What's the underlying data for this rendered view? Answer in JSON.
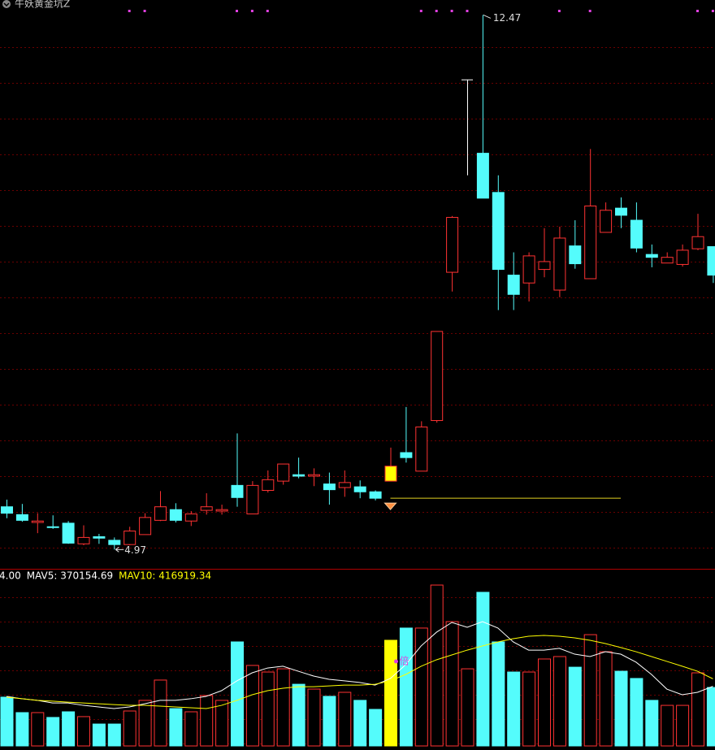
{
  "chart_data": {
    "type": "candlestick",
    "title": "牛妖黄金坑Z",
    "open": [
      5.57,
      5.46,
      5.35,
      5.29,
      5.34,
      5.05,
      5.15,
      5.1,
      5.04,
      5.18,
      5.38,
      5.53,
      5.37,
      5.52,
      5.51,
      5.87,
      5.47,
      5.8,
      5.93,
      6.02,
      6.0,
      5.89,
      5.84,
      5.85,
      5.78,
      5.93,
      6.33,
      6.07,
      6.78,
      8.86,
      10.22,
      10.53,
      9.98,
      8.82,
      8.71,
      8.9,
      8.61,
      9.23,
      8.77,
      9.42,
      9.76,
      9.59,
      9.11,
      8.99,
      8.97,
      9.19,
      9.22
    ],
    "high": [
      5.67,
      5.61,
      5.48,
      5.45,
      5.37,
      5.31,
      5.19,
      5.14,
      5.29,
      5.48,
      5.79,
      5.62,
      5.51,
      5.76,
      5.6,
      6.6,
      5.93,
      6.08,
      6.17,
      6.26,
      6.11,
      6.05,
      6.08,
      5.94,
      5.8,
      6.4,
      6.97,
      6.77,
      8.03,
      9.65,
      11.56,
      12.47,
      10.22,
      9.14,
      9.14,
      9.48,
      9.5,
      9.59,
      10.59,
      9.84,
      9.91,
      9.84,
      9.25,
      9.14,
      9.25,
      9.68,
      9.22
    ],
    "low": [
      5.41,
      5.36,
      5.2,
      5.26,
      5.05,
      5.03,
      5.05,
      4.97,
      5.03,
      5.18,
      5.37,
      5.35,
      5.3,
      5.46,
      5.46,
      5.57,
      5.47,
      5.77,
      5.88,
      5.97,
      5.86,
      5.6,
      5.71,
      5.69,
      5.66,
      5.93,
      6.19,
      6.07,
      6.75,
      8.59,
      10.22,
      9.9,
      8.33,
      8.33,
      8.45,
      8.79,
      8.51,
      8.91,
      8.77,
      9.42,
      9.48,
      9.14,
      8.93,
      8.99,
      8.94,
      9.17,
      8.71
    ],
    "close": [
      5.48,
      5.38,
      5.37,
      5.28,
      5.06,
      5.14,
      5.13,
      5.04,
      5.23,
      5.42,
      5.57,
      5.38,
      5.47,
      5.57,
      5.53,
      5.7,
      5.87,
      5.95,
      6.17,
      6.0,
      6.02,
      5.81,
      5.91,
      5.78,
      5.69,
      6.14,
      6.26,
      6.69,
      8.03,
      9.63,
      11.56,
      9.9,
      8.9,
      8.55,
      9.09,
      9.01,
      9.34,
      8.98,
      9.79,
      9.73,
      9.66,
      9.2,
      9.07,
      9.07,
      9.17,
      9.36,
      8.82
    ],
    "up_color": "#ff3232",
    "down_color": "#54fcfc",
    "highlight": {
      "index": 25,
      "color": "#ffff00"
    },
    "line_candle": {
      "index": 30,
      "color": "#ffffff"
    },
    "ylim": [
      4.7,
      12.68
    ],
    "annotations": [
      {
        "text": "12.47",
        "index": 31
      },
      {
        "text": "4.97",
        "index": 7
      }
    ],
    "signal_indices": [
      8,
      9,
      15,
      16,
      17,
      27,
      28,
      29,
      30,
      36,
      38,
      45,
      46
    ],
    "signal_color": "#e040e0",
    "support_line": {
      "value": 5.69,
      "from_index": 25,
      "to_index": 40,
      "color": "#e0d020"
    },
    "volume": {
      "values": [
        303000,
        207000,
        207000,
        177000,
        212000,
        182000,
        136000,
        136000,
        217000,
        283000,
        409000,
        232000,
        212000,
        313000,
        283000,
        646000,
        500000,
        459000,
        479000,
        383000,
        353000,
        308000,
        333000,
        283000,
        227000,
        656000,
        732000,
        732000,
        999000,
        772000,
        479000,
        954000,
        646000,
        459000,
        459000,
        540000,
        555000,
        489000,
        691000,
        585000,
        464000,
        419000,
        283000,
        252000,
        252000,
        454000,
        363000
      ],
      "ylim": [
        0,
        1100000
      ],
      "legend": [
        {
          "text": "4.00",
          "color": "#ffffff"
        },
        {
          "text": "MAV5: 370154.69",
          "color": "#ffffff"
        },
        {
          "text": "MAV10: 416919.34",
          "color": "#ffff00"
        }
      ],
      "ma": [
        {
          "color": "#ffffff",
          "values": [
            308000,
            293000,
            283000,
            267000,
            267000,
            252000,
            242000,
            232000,
            242000,
            262000,
            283000,
            283000,
            293000,
            308000,
            343000,
            404000,
            454000,
            484000,
            495000,
            464000,
            434000,
            414000,
            404000,
            394000,
            378000,
            419000,
            505000,
            621000,
            706000,
            767000,
            737000,
            772000,
            732000,
            646000,
            595000,
            595000,
            606000,
            570000,
            555000,
            585000,
            570000,
            520000,
            444000,
            353000,
            318000,
            333000,
            370154.69
          ]
        },
        {
          "color": "#ffff00",
          "values": [
            303000,
            293000,
            283000,
            278000,
            272000,
            267000,
            262000,
            257000,
            252000,
            252000,
            247000,
            242000,
            237000,
            232000,
            252000,
            283000,
            318000,
            343000,
            358000,
            368000,
            368000,
            373000,
            378000,
            378000,
            383000,
            404000,
            444000,
            495000,
            535000,
            565000,
            595000,
            621000,
            646000,
            666000,
            681000,
            686000,
            681000,
            671000,
            656000,
            636000,
            611000,
            585000,
            555000,
            525000,
            495000,
            464000,
            416919.34
          ]
        }
      ],
      "marker": {
        "text": "倍",
        "index": 25,
        "color": "#e040e0"
      }
    }
  }
}
